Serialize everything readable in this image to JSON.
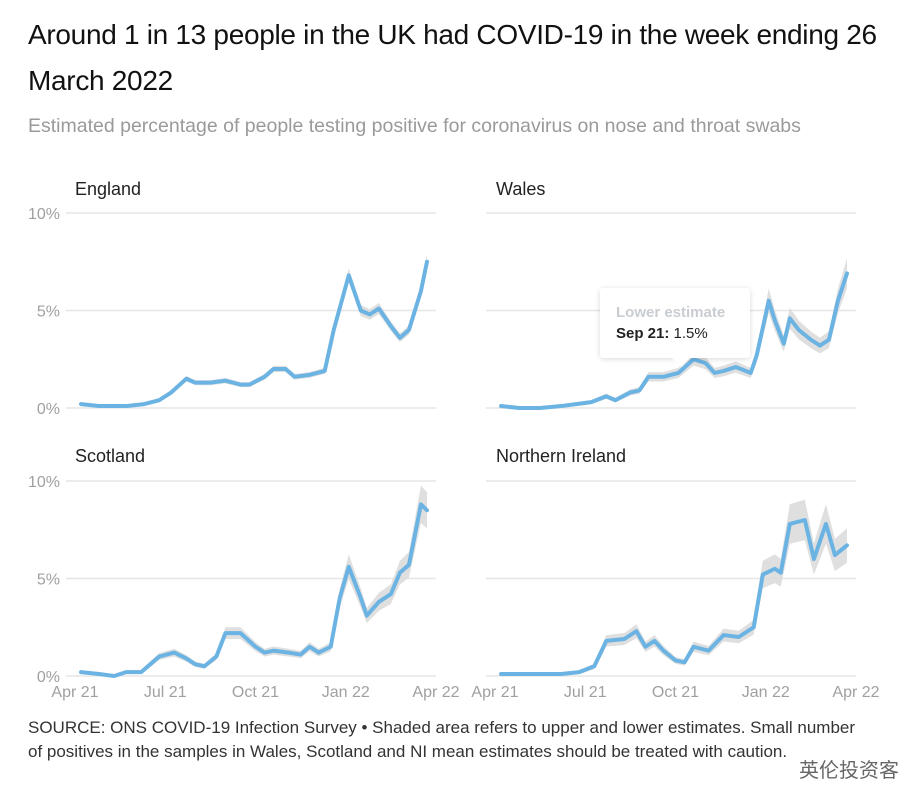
{
  "title": "Around 1 in 13 people in the UK had COVID-19 in the week ending 26 March 2022",
  "subtitle": "Estimated percentage of people testing positive for coronavirus on nose and throat swabs",
  "source": "SOURCE: ONS COVID-19 Infection Survey • Shaded area refers to upper and lower estimates. Small number of positives in the samples in Wales, Scotland and NI mean estimates should be treated with caution.",
  "watermark": "英伦投资客",
  "tooltip": {
    "heading": "Lower estimate",
    "date": "Sep 21:",
    "value": "1.5%"
  },
  "colors": {
    "line": "#6bb3e3",
    "band": "#dcdcdc",
    "grid": "#e6e6e6",
    "axis_text": "#a0a0a0"
  },
  "chart_data": [
    {
      "type": "area",
      "title": "England",
      "ylim": [
        0,
        10
      ],
      "yticks": [
        "0%",
        "5%",
        "10%"
      ],
      "ytick_values": [
        0,
        5,
        10
      ],
      "xlabel_ticks": [],
      "x_unit": "months since Apr 2021",
      "band_fraction": 0.04,
      "x": [
        0.2,
        0.8,
        1.7,
        2.3,
        2.8,
        3.2,
        3.7,
        4.0,
        4.5,
        5.0,
        5.5,
        5.8,
        6.3,
        6.6,
        7.0,
        7.3,
        7.8,
        8.3,
        8.6,
        9.1,
        9.5,
        9.8,
        10.1,
        10.5,
        10.8,
        11.1,
        11.5,
        11.7
      ],
      "y": [
        0.2,
        0.1,
        0.1,
        0.2,
        0.4,
        0.8,
        1.5,
        1.3,
        1.3,
        1.4,
        1.2,
        1.2,
        1.6,
        2.0,
        2.0,
        1.6,
        1.7,
        1.9,
        4.0,
        6.8,
        5.0,
        4.8,
        5.1,
        4.2,
        3.6,
        4.0,
        6.0,
        7.5
      ]
    },
    {
      "type": "area",
      "title": "Wales",
      "ylim": [
        0,
        10
      ],
      "yticks": [],
      "ytick_values": [
        0,
        5,
        10
      ],
      "xlabel_ticks": [],
      "x_unit": "months since Apr 2021",
      "band_fraction": 0.1,
      "x": [
        0.2,
        0.8,
        1.5,
        2.2,
        2.7,
        3.2,
        3.7,
        4.0,
        4.5,
        4.8,
        5.1,
        5.6,
        6.1,
        6.6,
        7.0,
        7.3,
        7.6,
        8.0,
        8.5,
        8.7,
        9.1,
        9.3,
        9.6,
        9.8,
        10.1,
        10.5,
        10.8,
        11.1,
        11.4,
        11.7
      ],
      "y": [
        0.1,
        0,
        0,
        0.1,
        0.2,
        0.3,
        0.6,
        0.4,
        0.8,
        0.9,
        1.6,
        1.6,
        1.8,
        2.5,
        2.3,
        1.8,
        1.9,
        2.1,
        1.8,
        2.7,
        5.5,
        4.5,
        3.3,
        4.6,
        4.0,
        3.5,
        3.2,
        3.5,
        5.5,
        6.9
      ]
    },
    {
      "type": "area",
      "title": "Scotland",
      "ylim": [
        0,
        10
      ],
      "yticks": [
        "0%",
        "5%",
        "10%"
      ],
      "ytick_values": [
        0,
        5,
        10
      ],
      "xlabel_ticks": [
        "Apr 21",
        "Jul 21",
        "Oct 21",
        "Jan 22",
        "Apr 22"
      ],
      "x_unit": "months since Apr 2021",
      "band_fraction": 0.1,
      "x": [
        0.2,
        0.8,
        1.3,
        1.7,
        2.2,
        2.5,
        2.8,
        3.3,
        3.7,
        4.0,
        4.3,
        4.7,
        5.0,
        5.5,
        6.0,
        6.3,
        6.6,
        7.1,
        7.5,
        7.8,
        8.1,
        8.5,
        8.8,
        9.1,
        9.5,
        9.7,
        10.1,
        10.5,
        10.8,
        11.1,
        11.5,
        11.7
      ],
      "y": [
        0.2,
        0.1,
        0,
        0.2,
        0.2,
        0.6,
        1.0,
        1.2,
        0.9,
        0.6,
        0.5,
        1.0,
        2.2,
        2.2,
        1.5,
        1.2,
        1.3,
        1.2,
        1.1,
        1.5,
        1.2,
        1.5,
        4.0,
        5.6,
        4.0,
        3.1,
        3.8,
        4.2,
        5.3,
        5.7,
        8.8,
        8.5
      ]
    },
    {
      "type": "area",
      "title": "Northern Ireland",
      "ylim": [
        0,
        10
      ],
      "yticks": [],
      "ytick_values": [
        0,
        5,
        10
      ],
      "xlabel_ticks": [
        "Apr 21",
        "Jul 21",
        "Oct 21",
        "Jan 22",
        "Apr 22"
      ],
      "x_unit": "months since Apr 2021",
      "band_fraction": 0.12,
      "x": [
        0.2,
        0.8,
        1.5,
        2.2,
        2.8,
        3.3,
        3.7,
        4.3,
        4.7,
        5.0,
        5.3,
        5.6,
        6.0,
        6.3,
        6.6,
        7.1,
        7.6,
        8.1,
        8.6,
        8.9,
        9.3,
        9.5,
        9.8,
        10.3,
        10.6,
        11.0,
        11.3,
        11.7
      ],
      "y": [
        0.1,
        0.1,
        0.1,
        0.1,
        0.2,
        0.5,
        1.8,
        1.9,
        2.3,
        1.5,
        1.8,
        1.3,
        0.8,
        0.7,
        1.5,
        1.3,
        2.1,
        2.0,
        2.5,
        5.2,
        5.5,
        5.3,
        7.8,
        8.0,
        6.0,
        7.8,
        6.2,
        6.7
      ]
    }
  ]
}
